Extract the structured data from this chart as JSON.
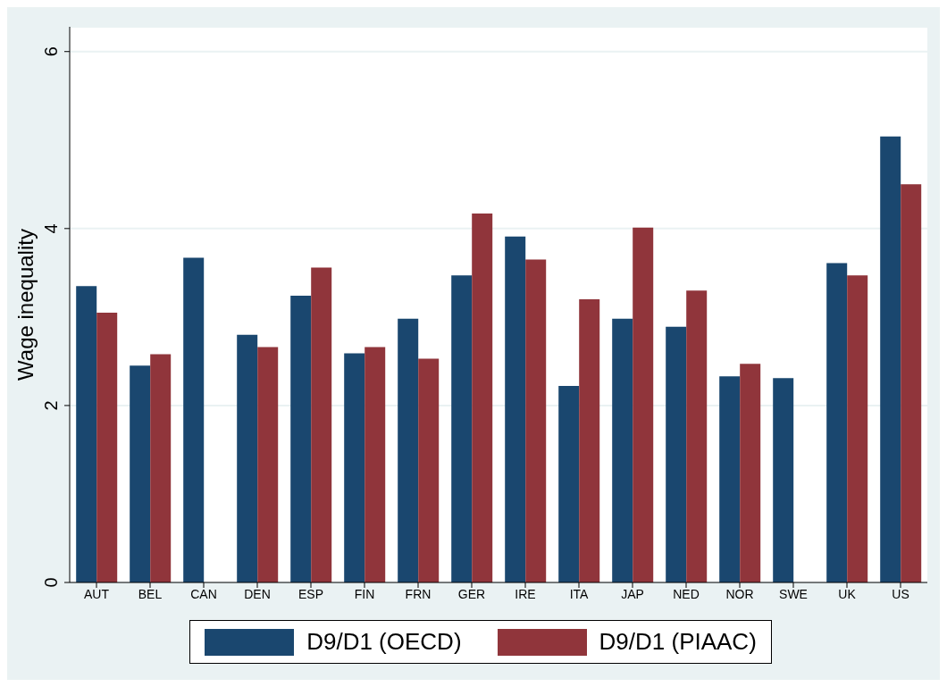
{
  "chart_data": {
    "type": "bar",
    "ylabel": "Wage inequality",
    "categories": [
      "AUT",
      "BEL",
      "CAN",
      "DEN",
      "ESP",
      "FIN",
      "FRN",
      "GER",
      "IRE",
      "ITA",
      "JAP",
      "NED",
      "NOR",
      "SWE",
      "UK",
      "US"
    ],
    "series": [
      {
        "name": "D9/D1 (OECD)",
        "color": "#1a476f",
        "values": [
          3.35,
          2.45,
          3.67,
          2.8,
          3.24,
          2.59,
          2.98,
          3.47,
          3.91,
          2.22,
          2.98,
          2.89,
          2.33,
          2.31,
          3.61,
          5.04
        ]
      },
      {
        "name": "D9/D1 (PIAAC)",
        "color": "#90353b",
        "values": [
          3.05,
          2.58,
          null,
          2.66,
          3.56,
          2.66,
          2.53,
          4.17,
          3.65,
          3.2,
          4.01,
          3.3,
          2.47,
          null,
          3.47,
          4.5
        ]
      }
    ],
    "ylim": [
      0,
      6.28
    ],
    "yticks": [
      0,
      2,
      4,
      6
    ],
    "grid": "y",
    "legend": "bottom"
  }
}
